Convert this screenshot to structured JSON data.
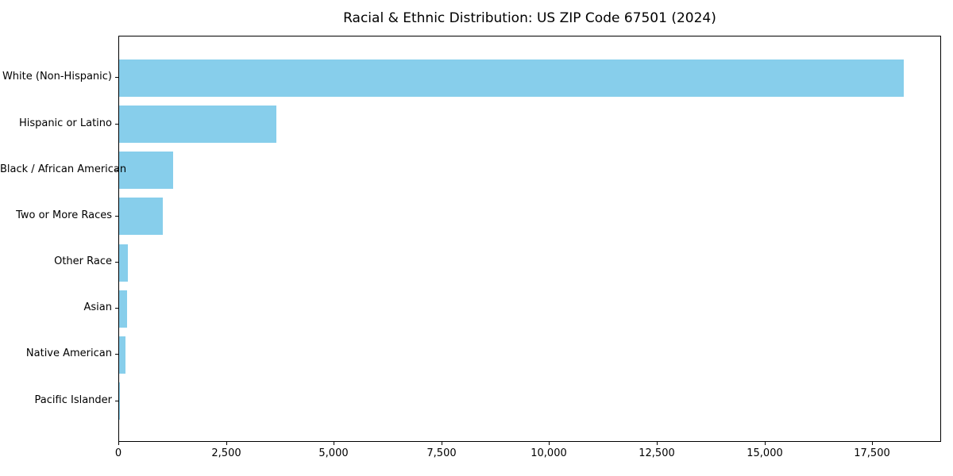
{
  "chart_data": {
    "type": "bar",
    "orientation": "horizontal",
    "title": "Racial & Ethnic Distribution: US ZIP Code 67501 (2024)",
    "categories": [
      "White (Non-Hispanic)",
      "Hispanic or Latino",
      "Black / African American",
      "Two or More Races",
      "Other Race",
      "Asian",
      "Native American",
      "Pacific Islander"
    ],
    "values": [
      18220,
      3650,
      1255,
      1015,
      205,
      185,
      155,
      15
    ],
    "xlabel": "",
    "ylabel": "",
    "xlim": [
      0,
      19100
    ],
    "xticks": [
      0,
      2500,
      5000,
      7500,
      10000,
      12500,
      15000,
      17500
    ],
    "xtick_labels": [
      "0",
      "2,500",
      "5,000",
      "7,500",
      "10,000",
      "12,500",
      "15,000",
      "17,500"
    ],
    "bar_color": "#87CEEB",
    "axis_color": "#000000",
    "grid": false,
    "legend": null
  }
}
